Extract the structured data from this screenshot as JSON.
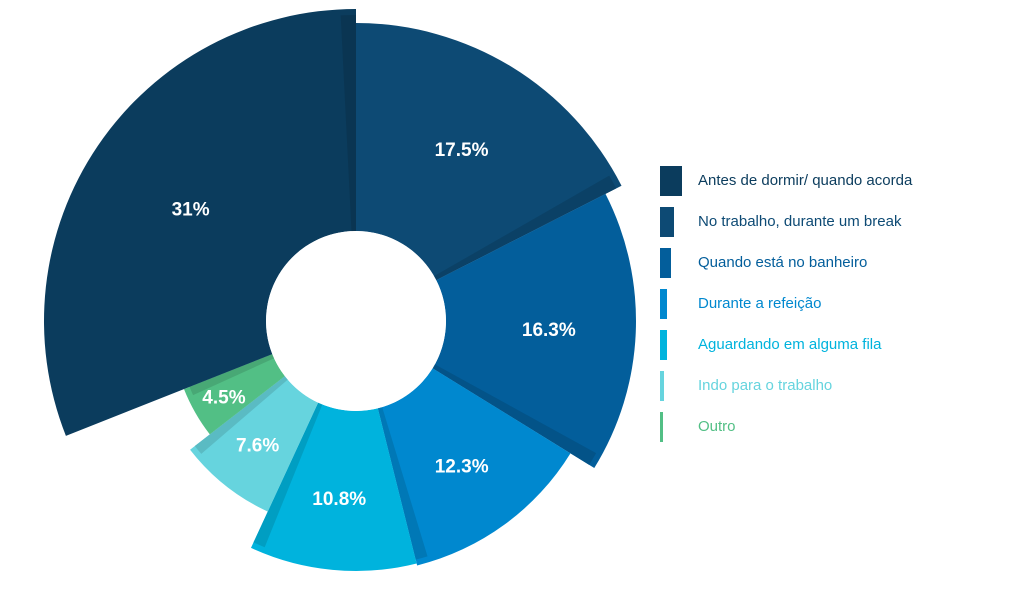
{
  "chart_data": {
    "type": "pie",
    "title": "",
    "style": "donut",
    "legend_position": "right",
    "slices": [
      {
        "label": "Antes de dormir/ quando acorda",
        "value": 31,
        "display": "31%",
        "color": "#0b3c5d"
      },
      {
        "label": "No trabalho, durante um break",
        "value": 17.5,
        "display": "17.5%",
        "color": "#0d4a74"
      },
      {
        "label": "Quando está no banheiro",
        "value": 16.3,
        "display": "16.3%",
        "color": "#035e9b"
      },
      {
        "label": "Durante a refeição",
        "value": 12.3,
        "display": "12.3%",
        "color": "#0088cf"
      },
      {
        "label": "Aguardando em alguma fila",
        "value": 10.8,
        "display": "10.8%",
        "color": "#00b3dd"
      },
      {
        "label": "Indo para o trabalho",
        "value": 7.6,
        "display": "7.6%",
        "color": "#66d4de"
      },
      {
        "label": "Outro",
        "value": 4.5,
        "display": "4.5%",
        "color": "#52bf85"
      }
    ]
  }
}
